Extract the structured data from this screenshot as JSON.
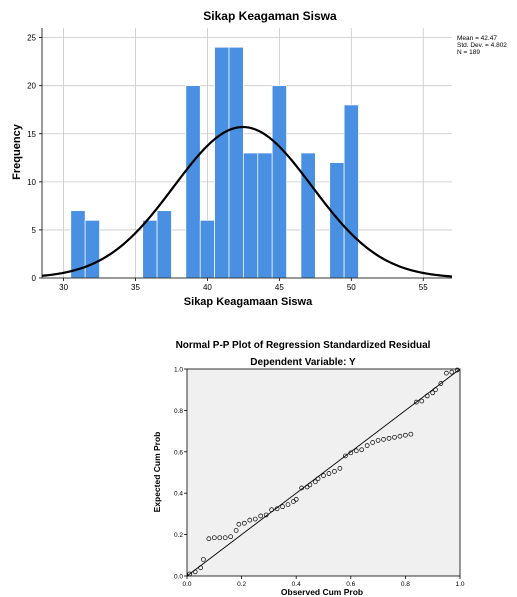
{
  "chart_data": [
    {
      "type": "bar",
      "title": "Sikap Keagaman Siswa",
      "xlabel": "Sikap Keagamaan Siswa",
      "ylabel": "Frequency",
      "xlim": [
        28.5,
        57
      ],
      "ylim": [
        0,
        26
      ],
      "xticks": [
        30,
        35,
        40,
        45,
        50,
        55
      ],
      "yticks": [
        0,
        5,
        10,
        15,
        20,
        25
      ],
      "grid": true,
      "bin_width": 1,
      "bins": [
        {
          "start": 30.5,
          "value": 7
        },
        {
          "start": 31.5,
          "value": 6
        },
        {
          "start": 35.5,
          "value": 6
        },
        {
          "start": 36.5,
          "value": 7
        },
        {
          "start": 38.5,
          "value": 20
        },
        {
          "start": 39.5,
          "value": 6
        },
        {
          "start": 40.5,
          "value": 24
        },
        {
          "start": 41.5,
          "value": 24
        },
        {
          "start": 42.5,
          "value": 13
        },
        {
          "start": 43.5,
          "value": 13
        },
        {
          "start": 44.5,
          "value": 20
        },
        {
          "start": 46.5,
          "value": 13
        },
        {
          "start": 48.5,
          "value": 12
        },
        {
          "start": 49.5,
          "value": 18
        }
      ],
      "normal_curve": {
        "mean": 42.47,
        "std": 4.802,
        "n": 189
      },
      "stats": [
        "Mean = 42.47",
        "Std. Dev. = 4.802",
        "N = 189"
      ],
      "bar_color": "#4a90e2",
      "curve_color": "#000000"
    },
    {
      "type": "scatter",
      "title": "Normal P-P Plot of Regression Standardized Residual",
      "subtitle": "Dependent Variable: Y",
      "xlabel": "Observed Cum Prob",
      "ylabel": "Expected Cum Prob",
      "xlim": [
        0,
        1
      ],
      "ylim": [
        0,
        1
      ],
      "xticks": [
        "0.0",
        "0.2",
        "0.4",
        "0.6",
        "0.8",
        "1.0"
      ],
      "yticks": [
        "0.0",
        "0.2",
        "0.4",
        "0.6",
        "0.8",
        "1.0"
      ],
      "background": "#f0f0f0",
      "points": [
        [
          0.01,
          0.01
        ],
        [
          0.03,
          0.02
        ],
        [
          0.05,
          0.04
        ],
        [
          0.06,
          0.08
        ],
        [
          0.08,
          0.18
        ],
        [
          0.1,
          0.185
        ],
        [
          0.12,
          0.185
        ],
        [
          0.14,
          0.185
        ],
        [
          0.16,
          0.19
        ],
        [
          0.18,
          0.22
        ],
        [
          0.19,
          0.25
        ],
        [
          0.21,
          0.255
        ],
        [
          0.23,
          0.27
        ],
        [
          0.25,
          0.275
        ],
        [
          0.27,
          0.29
        ],
        [
          0.29,
          0.295
        ],
        [
          0.31,
          0.32
        ],
        [
          0.33,
          0.325
        ],
        [
          0.35,
          0.335
        ],
        [
          0.37,
          0.345
        ],
        [
          0.39,
          0.36
        ],
        [
          0.4,
          0.37
        ],
        [
          0.42,
          0.425
        ],
        [
          0.44,
          0.43
        ],
        [
          0.45,
          0.44
        ],
        [
          0.47,
          0.455
        ],
        [
          0.48,
          0.47
        ],
        [
          0.5,
          0.485
        ],
        [
          0.52,
          0.495
        ],
        [
          0.54,
          0.505
        ],
        [
          0.56,
          0.52
        ],
        [
          0.58,
          0.58
        ],
        [
          0.6,
          0.595
        ],
        [
          0.62,
          0.605
        ],
        [
          0.64,
          0.61
        ],
        [
          0.66,
          0.63
        ],
        [
          0.68,
          0.645
        ],
        [
          0.7,
          0.655
        ],
        [
          0.72,
          0.66
        ],
        [
          0.74,
          0.665
        ],
        [
          0.76,
          0.67
        ],
        [
          0.78,
          0.675
        ],
        [
          0.8,
          0.68
        ],
        [
          0.82,
          0.685
        ],
        [
          0.84,
          0.84
        ],
        [
          0.86,
          0.845
        ],
        [
          0.88,
          0.87
        ],
        [
          0.9,
          0.885
        ],
        [
          0.91,
          0.9
        ],
        [
          0.93,
          0.93
        ],
        [
          0.95,
          0.98
        ],
        [
          0.97,
          0.985
        ],
        [
          0.99,
          0.995
        ]
      ],
      "reference_line": [
        [
          0,
          0
        ],
        [
          1,
          1
        ]
      ]
    }
  ]
}
